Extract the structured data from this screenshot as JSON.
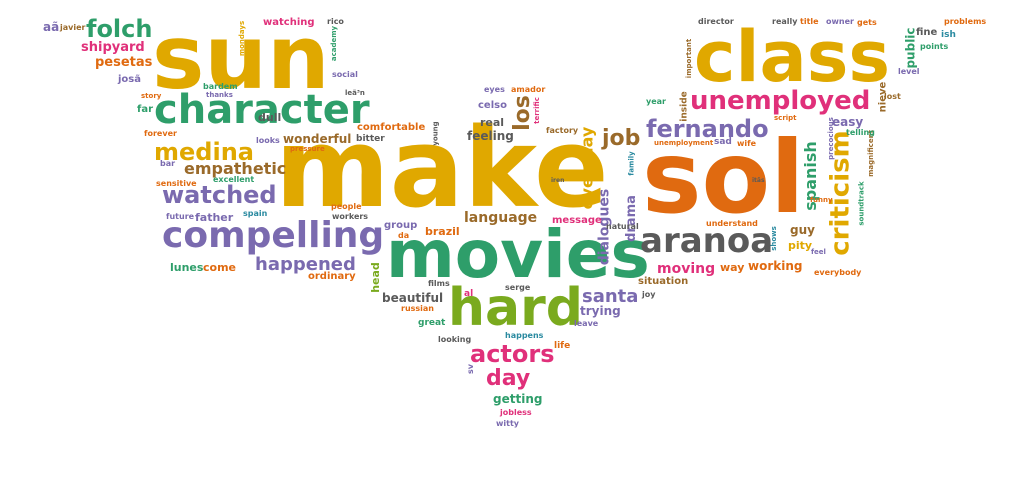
{
  "colors": {
    "gold": "#e0a800",
    "orange": "#e06a10",
    "purple": "#7a6aaf",
    "green": "#2e9e6a",
    "lime": "#7aaa1e",
    "magenta": "#e0307a",
    "brown": "#9a6a2a",
    "gray": "#5a5a5a",
    "teal": "#2a8aa0"
  },
  "words": [
    {
      "text": "make",
      "color": "gold",
      "size": 110,
      "rotate": 0
    },
    {
      "text": "sol",
      "color": "orange",
      "size": 100,
      "rotate": 0
    },
    {
      "text": "sun",
      "color": "gold",
      "size": 88,
      "rotate": 0
    },
    {
      "text": "class",
      "color": "gold",
      "size": 70,
      "rotate": 0
    },
    {
      "text": "movies",
      "color": "green",
      "size": 66,
      "rotate": 0
    },
    {
      "text": "hard",
      "color": "lime",
      "size": 52,
      "rotate": 0
    },
    {
      "text": "character",
      "color": "green",
      "size": 40,
      "rotate": 0
    },
    {
      "text": "compelling",
      "color": "purple",
      "size": 36,
      "rotate": 0
    },
    {
      "text": "aranoa",
      "color": "gray",
      "size": 34,
      "rotate": 0
    },
    {
      "text": "unemployed",
      "color": "magenta",
      "size": 26,
      "rotate": 0
    },
    {
      "text": "criticism",
      "color": "gold",
      "size": 26,
      "rotate": -90
    },
    {
      "text": "fernando",
      "color": "purple",
      "size": 24,
      "rotate": 0
    },
    {
      "text": "watched",
      "color": "purple",
      "size": 24,
      "rotate": 0
    },
    {
      "text": "medina",
      "color": "gold",
      "size": 24,
      "rotate": 0
    },
    {
      "text": "actors",
      "color": "magenta",
      "size": 24,
      "rotate": 0
    },
    {
      "text": "folch",
      "color": "green",
      "size": 24,
      "rotate": 0
    },
    {
      "text": "day",
      "color": "magenta",
      "size": 22,
      "rotate": 0
    },
    {
      "text": "los",
      "color": "brown",
      "size": 22,
      "rotate": -90
    },
    {
      "text": "job",
      "color": "brown",
      "size": 22,
      "rotate": 0
    },
    {
      "text": "happened",
      "color": "purple",
      "size": 18,
      "rotate": 0
    },
    {
      "text": "santa",
      "color": "purple",
      "size": 18,
      "rotate": 0
    },
    {
      "text": "everyday",
      "color": "gold",
      "size": 16,
      "rotate": -90
    },
    {
      "text": "spanish",
      "color": "green",
      "size": 16,
      "rotate": -90
    },
    {
      "text": "empathetic",
      "color": "brown",
      "size": 16,
      "rotate": 0
    },
    {
      "text": "moving",
      "color": "magenta",
      "size": 14,
      "rotate": 0
    },
    {
      "text": "dialogues",
      "color": "purple",
      "size": 14,
      "rotate": -90
    },
    {
      "text": "language",
      "color": "brown",
      "size": 14,
      "rotate": 0
    },
    {
      "text": "shipyard",
      "color": "magenta",
      "size": 13,
      "rotate": 0
    },
    {
      "text": "pesetas",
      "color": "orange",
      "size": 13,
      "rotate": 0
    },
    {
      "text": "wonderful",
      "color": "brown",
      "size": 12,
      "rotate": 0
    },
    {
      "text": "drama",
      "color": "purple",
      "size": 13,
      "rotate": -90
    },
    {
      "text": "beautiful",
      "color": "gray",
      "size": 12,
      "rotate": 0
    },
    {
      "text": "trying",
      "color": "purple",
      "size": 12,
      "rotate": 0
    },
    {
      "text": "getting",
      "color": "green",
      "size": 12,
      "rotate": 0
    },
    {
      "text": "feeling",
      "color": "gray",
      "size": 12,
      "rotate": 0
    },
    {
      "text": "easy",
      "color": "purple",
      "size": 12,
      "rotate": 0
    },
    {
      "text": "public",
      "color": "green",
      "size": 12,
      "rotate": -90
    },
    {
      "text": "working",
      "color": "orange",
      "size": 12,
      "rotate": 0
    },
    {
      "text": "guy",
      "color": "brown",
      "size": 12,
      "rotate": 0
    },
    {
      "text": "real",
      "color": "gray",
      "size": 11,
      "rotate": 0
    },
    {
      "text": "brazil",
      "color": "orange",
      "size": 11,
      "rotate": 0
    },
    {
      "text": "way",
      "color": "orange",
      "size": 11,
      "rotate": 0
    },
    {
      "text": "pity",
      "color": "gold",
      "size": 11,
      "rotate": 0
    },
    {
      "text": "come",
      "color": "orange",
      "size": 11,
      "rotate": 0
    },
    {
      "text": "lunes",
      "color": "green",
      "size": 11,
      "rotate": 0
    },
    {
      "text": "head",
      "color": "lime",
      "size": 11,
      "rotate": -90
    },
    {
      "text": "dull",
      "color": "gray",
      "size": 11,
      "rotate": 0
    },
    {
      "text": "father",
      "color": "purple",
      "size": 11,
      "rotate": 0
    },
    {
      "text": "comfortable",
      "color": "orange",
      "size": 10,
      "rotate": 0
    },
    {
      "text": "group",
      "color": "purple",
      "size": 10,
      "rotate": 0
    },
    {
      "text": "message",
      "color": "magenta",
      "size": 10,
      "rotate": 0
    },
    {
      "text": "situation",
      "color": "brown",
      "size": 10,
      "rotate": 0
    },
    {
      "text": "ordinary",
      "color": "orange",
      "size": 10,
      "rotate": 0
    },
    {
      "text": "celso",
      "color": "purple",
      "size": 10,
      "rotate": 0
    },
    {
      "text": "watching",
      "color": "magenta",
      "size": 10,
      "rotate": 0
    },
    {
      "text": "nieve",
      "color": "brown",
      "size": 10,
      "rotate": -90
    },
    {
      "text": "fine",
      "color": "gray",
      "size": 10,
      "rotate": 0
    },
    {
      "text": "ish",
      "color": "teal",
      "size": 9,
      "rotate": 0
    },
    {
      "text": "bitter",
      "color": "gray",
      "size": 9,
      "rotate": 0
    },
    {
      "text": "far",
      "color": "green",
      "size": 10,
      "rotate": 0
    },
    {
      "text": "josã",
      "color": "purple",
      "size": 10,
      "rotate": 0
    },
    {
      "text": "inside",
      "color": "brown",
      "size": 9,
      "rotate": -90
    },
    {
      "text": "life",
      "color": "orange",
      "size": 9,
      "rotate": 0
    },
    {
      "text": "leave",
      "color": "purple",
      "size": 8,
      "rotate": 0
    },
    {
      "text": "joy",
      "color": "gray",
      "size": 8,
      "rotate": 0
    },
    {
      "text": "great",
      "color": "green",
      "size": 9,
      "rotate": 0
    },
    {
      "text": "al",
      "color": "magenta",
      "size": 9,
      "rotate": 0
    },
    {
      "text": "serge",
      "color": "gray",
      "size": 8,
      "rotate": 0
    },
    {
      "text": "happens",
      "color": "teal",
      "size": 8,
      "rotate": 0
    },
    {
      "text": "looking",
      "color": "gray",
      "size": 8,
      "rotate": 0
    },
    {
      "text": "jobless",
      "color": "magenta",
      "size": 8,
      "rotate": 0
    },
    {
      "text": "witty",
      "color": "purple",
      "size": 8,
      "rotate": 0
    },
    {
      "text": "sv",
      "color": "purple",
      "size": 8,
      "rotate": -90
    },
    {
      "text": "da",
      "color": "orange",
      "size": 8,
      "rotate": 0
    },
    {
      "text": "russian",
      "color": "orange",
      "size": 8,
      "rotate": 0
    },
    {
      "text": "films",
      "color": "gray",
      "size": 8,
      "rotate": 0
    },
    {
      "text": "natural",
      "color": "gray",
      "size": 8,
      "rotate": 0
    },
    {
      "text": "workers",
      "color": "gray",
      "size": 8,
      "rotate": 0
    },
    {
      "text": "people",
      "color": "orange",
      "size": 8,
      "rotate": 0
    },
    {
      "text": "spain",
      "color": "teal",
      "size": 8,
      "rotate": 0
    },
    {
      "text": "future",
      "color": "purple",
      "size": 8,
      "rotate": 0
    },
    {
      "text": "sensitive",
      "color": "orange",
      "size": 8,
      "rotate": 0
    },
    {
      "text": "excellent",
      "color": "green",
      "size": 8,
      "rotate": 0
    },
    {
      "text": "bar",
      "color": "purple",
      "size": 8,
      "rotate": 0
    },
    {
      "text": "forever",
      "color": "orange",
      "size": 8,
      "rotate": 0
    },
    {
      "text": "looks",
      "color": "purple",
      "size": 8,
      "rotate": 0
    },
    {
      "text": "pressure",
      "color": "orange",
      "size": 7,
      "rotate": 0
    },
    {
      "text": "young",
      "color": "gray",
      "size": 7,
      "rotate": -90
    },
    {
      "text": "factory",
      "color": "brown",
      "size": 8,
      "rotate": 0
    },
    {
      "text": "unemployment",
      "color": "orange",
      "size": 7,
      "rotate": 0
    },
    {
      "text": "family",
      "color": "teal",
      "size": 7,
      "rotate": -90
    },
    {
      "text": "sad",
      "color": "purple",
      "size": 9,
      "rotate": 0
    },
    {
      "text": "wife",
      "color": "orange",
      "size": 8,
      "rotate": 0
    },
    {
      "text": "script",
      "color": "orange",
      "size": 7,
      "rotate": 0
    },
    {
      "text": "precocious",
      "color": "purple",
      "size": 7,
      "rotate": -90
    },
    {
      "text": "magnificent",
      "color": "brown",
      "size": 7,
      "rotate": -90
    },
    {
      "text": "funny",
      "color": "orange",
      "size": 7,
      "rotate": 0
    },
    {
      "text": "soundtrack",
      "color": "green",
      "size": 7,
      "rotate": -90
    },
    {
      "text": "feel",
      "color": "purple",
      "size": 7,
      "rotate": 0
    },
    {
      "text": "everybody",
      "color": "orange",
      "size": 8,
      "rotate": 0
    },
    {
      "text": "understand",
      "color": "orange",
      "size": 8,
      "rotate": 0
    },
    {
      "text": "shows",
      "color": "teal",
      "size": 7,
      "rotate": -90
    },
    {
      "text": "telling",
      "color": "green",
      "size": 8,
      "rotate": 0
    },
    {
      "text": "lost",
      "color": "brown",
      "size": 8,
      "rotate": 0
    },
    {
      "text": "level",
      "color": "purple",
      "size": 8,
      "rotate": 0
    },
    {
      "text": "points",
      "color": "green",
      "size": 8,
      "rotate": 0
    },
    {
      "text": "problems",
      "color": "orange",
      "size": 8,
      "rotate": 0
    },
    {
      "text": "gets",
      "color": "orange",
      "size": 8,
      "rotate": 0
    },
    {
      "text": "owner",
      "color": "purple",
      "size": 8,
      "rotate": 0
    },
    {
      "text": "title",
      "color": "orange",
      "size": 8,
      "rotate": 0
    },
    {
      "text": "really",
      "color": "gray",
      "size": 8,
      "rotate": 0
    },
    {
      "text": "director",
      "color": "gray",
      "size": 8,
      "rotate": 0
    },
    {
      "text": "important",
      "color": "brown",
      "size": 7,
      "rotate": -90
    },
    {
      "text": "year",
      "color": "green",
      "size": 8,
      "rotate": 0
    },
    {
      "text": "rico",
      "color": "gray",
      "size": 8,
      "rotate": 0
    },
    {
      "text": "academy",
      "color": "green",
      "size": 7,
      "rotate": -90
    },
    {
      "text": "social",
      "color": "purple",
      "size": 8,
      "rotate": 0
    },
    {
      "text": "leã³n",
      "color": "gray",
      "size": 7,
      "rotate": 0
    },
    {
      "text": "eyes",
      "color": "purple",
      "size": 8,
      "rotate": 0
    },
    {
      "text": "amador",
      "color": "orange",
      "size": 8,
      "rotate": 0
    },
    {
      "text": "terrific",
      "color": "magenta",
      "size": 7,
      "rotate": -90
    },
    {
      "text": "bardem",
      "color": "green",
      "size": 8,
      "rotate": 0
    },
    {
      "text": "thanks",
      "color": "purple",
      "size": 7,
      "rotate": 0
    },
    {
      "text": "story",
      "color": "orange",
      "size": 7,
      "rotate": 0
    },
    {
      "text": "mondays",
      "color": "gold",
      "size": 7,
      "rotate": -90
    },
    {
      "text": "aã",
      "color": "purple",
      "size": 12,
      "rotate": 0
    },
    {
      "text": "javier",
      "color": "brown",
      "size": 8,
      "rotate": 0
    },
    {
      "text": "itãs",
      "color": "gray",
      "size": 6,
      "rotate": 0
    },
    {
      "text": "iren",
      "color": "gray",
      "size": 6,
      "rotate": 0
    }
  ]
}
